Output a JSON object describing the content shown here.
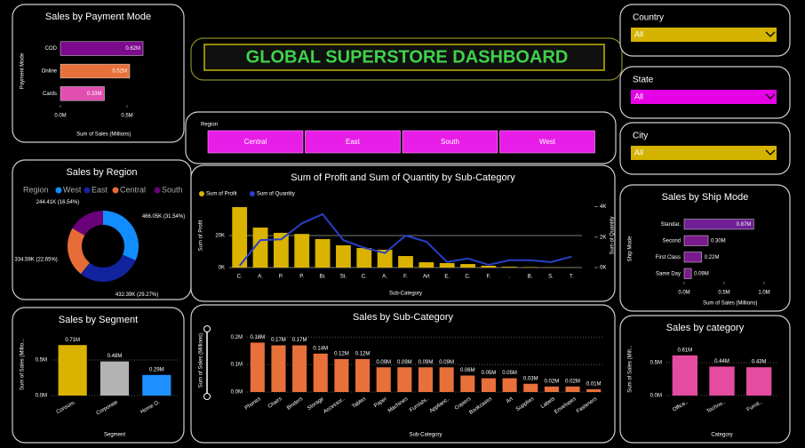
{
  "header": {
    "title": "GLOBAL SUPERSTORE DASHBOARD"
  },
  "filters": {
    "country": {
      "label": "Country",
      "value": "All"
    },
    "state": {
      "label": "State",
      "value": "All"
    },
    "city": {
      "label": "City",
      "value": "All"
    },
    "region": {
      "label": "Region",
      "options": [
        "Central",
        "East",
        "South",
        "West"
      ]
    }
  },
  "chart_data": [
    {
      "type": "bar",
      "horizontal": true,
      "title": "Sales by Payment Mode",
      "categories": [
        "COD",
        "Online",
        "Cards"
      ],
      "values": [
        0.62,
        0.52,
        0.33
      ],
      "value_labels": [
        "0.62M",
        "0.52M",
        "0.33M"
      ],
      "colors": [
        "#7b0a8c",
        "#e8703a",
        "#e14fb0"
      ],
      "xlim": [
        0,
        0.65
      ],
      "xticks": [
        {
          "value": 0,
          "label": "0.0M"
        },
        {
          "value": 0.5,
          "label": "0.5M"
        }
      ],
      "x_label": "Sum of Sales (Millions)",
      "y_label": "Payment Mode",
      "grid": false
    },
    {
      "type": "pie",
      "donut": true,
      "title": "Sales by Region",
      "legend_title": "Region",
      "categories": [
        "West",
        "East",
        "Central",
        "South"
      ],
      "values": [
        466.05,
        432.39,
        334.59,
        244.41
      ],
      "value_labels": [
        "466.05K (31.54%)",
        "432.39K (29.27%)",
        "334.59K (22.65%)",
        "244.41K (16.54%)"
      ],
      "colors": [
        "#118dff",
        "#12239e",
        "#e66c37",
        "#6b007b"
      ]
    },
    {
      "type": "bar",
      "title": "Sales by Segment",
      "categories": [
        "Consum.",
        "Corporate",
        "Home O."
      ],
      "values": [
        0.71,
        0.48,
        0.29
      ],
      "value_labels": [
        "0.71M",
        "0.48M",
        "0.29M"
      ],
      "colors": [
        "#d9b300",
        "#b3b3b3",
        "#1e90ff"
      ],
      "ylim": [
        0,
        0.875
      ],
      "yticks": [
        {
          "value": 0,
          "label": "0.0M"
        },
        {
          "value": 0.5,
          "label": "0.5M"
        }
      ],
      "x_label": "Segment",
      "y_label": "Sum of Sales (Millio...",
      "grid": true
    },
    {
      "type": "combo",
      "title": "Sum of Profit and Sum of Quantity by Sub-Category",
      "categories": [
        "C.",
        "A.",
        "P.",
        "P.",
        "Bi.",
        "St.",
        "C.",
        "A.",
        "F.",
        "Art",
        "E.",
        "C.",
        "F.",
        ".",
        "B.",
        "S.",
        "T."
      ],
      "series": [
        {
          "name": "Sum of Profit",
          "type": "bar",
          "color": "#d9b300",
          "values": [
            37800,
            25000,
            21700,
            21000,
            17800,
            13900,
            12200,
            11100,
            7200,
            3300,
            2800,
            2200,
            1100,
            500,
            300,
            200,
            100
          ]
        },
        {
          "name": "Sum of Quantity",
          "type": "line",
          "axis": "y2",
          "color": "#2a3fc9",
          "values": [
            120,
            1800,
            1850,
            2900,
            3500,
            1800,
            1300,
            950,
            2100,
            1700,
            360,
            600,
            180,
            480,
            480,
            360,
            720
          ]
        }
      ],
      "ylim": [
        0,
        40000
      ],
      "yticks": [
        {
          "value": 0,
          "label": "0K"
        },
        {
          "value": 20000,
          "label": "20K"
        }
      ],
      "y2lim": [
        0,
        4200
      ],
      "y2ticks": [
        {
          "value": 0,
          "label": "0K"
        },
        {
          "value": 2000,
          "label": "2K"
        },
        {
          "value": 4000,
          "label": "4K"
        }
      ],
      "x_label": "Sub-Category",
      "y_label": "Sum of Profit",
      "y2_label": "Sum of Quantity",
      "grid": true
    },
    {
      "type": "bar",
      "title": "Sales by Sub-Category",
      "categories": [
        "Phones",
        "Chairs",
        "Binders",
        "Storage",
        "Accessor..",
        "Tables",
        "Paper",
        "Machines",
        "Furnishi..",
        "Applianc..",
        "Copiers",
        "Bookcases",
        "Art",
        "Supplies",
        "Labels",
        "Envelopes",
        "Fasteners"
      ],
      "values": [
        0.18,
        0.17,
        0.17,
        0.14,
        0.12,
        0.12,
        0.09,
        0.09,
        0.09,
        0.09,
        0.06,
        0.05,
        0.05,
        0.03,
        0.02,
        0.02,
        0.01
      ],
      "value_labels": [
        "0.18M",
        "0.17M",
        "0.17M",
        "0.14M",
        "0.12M",
        "0.12M",
        "0.09M",
        "0.09M",
        "0.09M",
        "0.09M",
        "0.06M",
        "0.05M",
        "0.05M",
        "0.03M",
        "0.02M",
        "0.02M",
        "0.01M"
      ],
      "color": "#e8703a",
      "ylim": [
        0,
        0.23
      ],
      "yticks": [
        {
          "value": 0,
          "label": "0.0M"
        },
        {
          "value": 0.1,
          "label": "0.1M"
        },
        {
          "value": 0.2,
          "label": "0.2M"
        }
      ],
      "x_label": "Sub-Category",
      "y_label": "Sum of Sales (Millions)",
      "grid": true
    },
    {
      "type": "bar",
      "horizontal": true,
      "title": "Sales by Ship Mode",
      "categories": [
        "Standar.",
        "Second",
        "First Class",
        "Same Day"
      ],
      "values": [
        0.87,
        0.3,
        0.22,
        0.09
      ],
      "value_labels": [
        "0.87M",
        "0.30M",
        "0.22M",
        "0.09M"
      ],
      "colors": [
        "#6f1e95",
        "#7a1a8c",
        "#7a1a8c",
        "#7a1a8c"
      ],
      "xlim": [
        0,
        1.15
      ],
      "xticks": [
        {
          "value": 0,
          "label": "0.0M"
        },
        {
          "value": 0.5,
          "label": "0.5M"
        },
        {
          "value": 1,
          "label": "1.0M"
        }
      ],
      "x_label": "Sum of Sales (Millions)",
      "y_label": "Ship Mode",
      "grid": false
    },
    {
      "type": "bar",
      "title": "Sales by category",
      "categories": [
        "Office..",
        "Techno..",
        "Furnit.."
      ],
      "values": [
        0.61,
        0.44,
        0.43
      ],
      "value_labels": [
        "0.61M",
        "0.44M",
        "0.43M"
      ],
      "color": "#e54ba0",
      "ylim": [
        0,
        0.81
      ],
      "yticks": [
        {
          "value": 0,
          "label": "0.0M"
        },
        {
          "value": 0.5,
          "label": "0.5M"
        }
      ],
      "x_label": "Category",
      "y_label": "Sum of Sales (Mill...",
      "grid": true
    }
  ]
}
